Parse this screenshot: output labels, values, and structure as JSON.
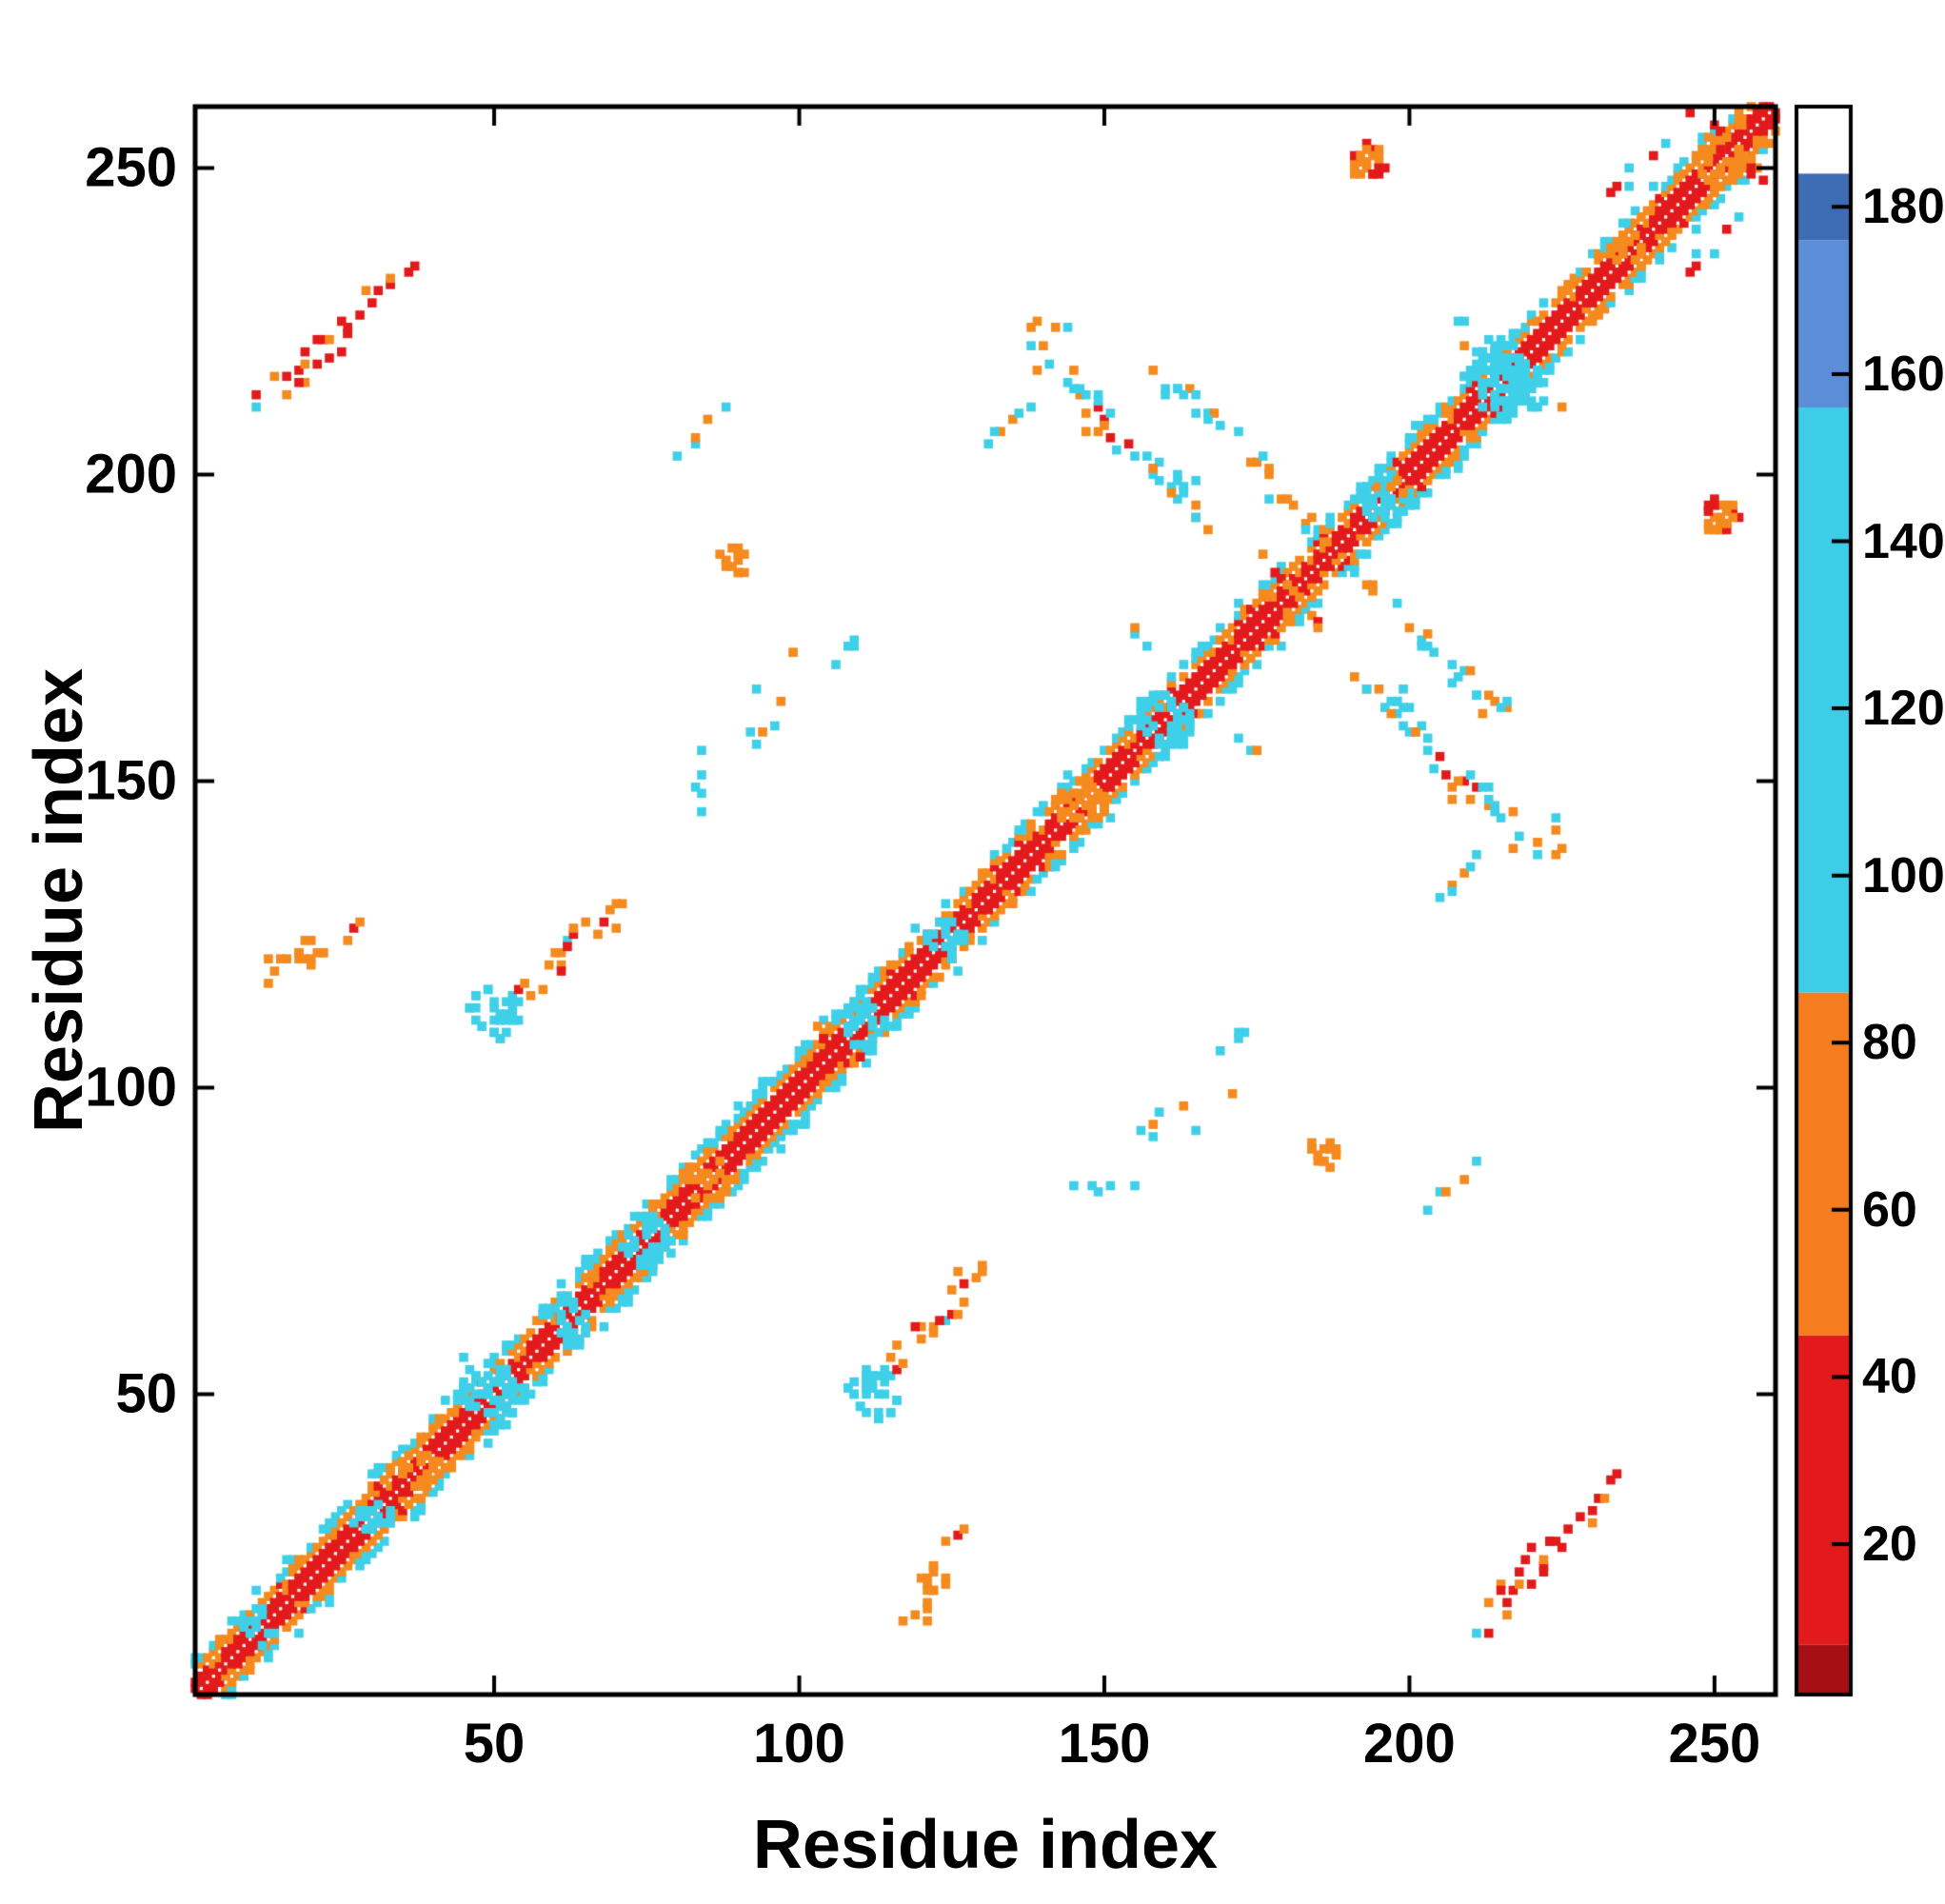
{
  "figure": {
    "background": "#ffffff",
    "frame_color": "#000000"
  },
  "chart_data": {
    "type": "heatmap",
    "title": "",
    "xlabel": "Residue index",
    "ylabel": "Residue index",
    "x_range": [
      1,
      260
    ],
    "y_range": [
      1,
      260
    ],
    "x_ticks": [
      50,
      100,
      150,
      200,
      250
    ],
    "y_ticks": [
      50,
      100,
      150,
      200,
      250
    ],
    "grid": false,
    "legend": "none",
    "palette": {
      "red": "#e31a1c",
      "darkred": "#a50f15",
      "orange": "#f58a1f",
      "cyan": "#3fd0e9",
      "blue": "#5b8ed6",
      "white": "#ffffff"
    },
    "colorbar": {
      "position": "right",
      "min": 2,
      "max": 192,
      "ticks": [
        20,
        40,
        60,
        80,
        100,
        120,
        140,
        160,
        180
      ],
      "segments": [
        {
          "from": 2,
          "to": 8,
          "color": "#a50f15"
        },
        {
          "from": 8,
          "to": 45,
          "color": "#e31a1c"
        },
        {
          "from": 45,
          "to": 86,
          "color": "#f57d20"
        },
        {
          "from": 86,
          "to": 156,
          "color": "#3ecde8"
        },
        {
          "from": 156,
          "to": 176,
          "color": "#5b8ed6"
        },
        {
          "from": 176,
          "to": 184,
          "color": "#3c6cb4"
        },
        {
          "from": 184,
          "to": 192,
          "color": "#ffffff"
        }
      ]
    },
    "diagonal_band": {
      "range": [
        1,
        260
      ],
      "center_color": "white",
      "layers": [
        {
          "offset": 1,
          "color": "red",
          "prob": 1.0
        },
        {
          "offset": 2,
          "color": "red",
          "prob": 0.9,
          "alt": "orange",
          "alt_prob": 0.1
        },
        {
          "offset": 3,
          "color": "orange",
          "prob": 0.12
        },
        {
          "offset": 4,
          "color": "orange",
          "prob": 0.8,
          "alt": "red",
          "alt_prob": 0.1
        },
        {
          "offset": 5,
          "color": "cyan",
          "prob": 0.4,
          "alt": "orange",
          "alt_prob": 0.2
        },
        {
          "offset": 6,
          "color": "cyan",
          "prob": 0.28
        },
        {
          "offset": 7,
          "color": "cyan",
          "prob": 0.08
        }
      ]
    },
    "diagonal_bulges": [
      {
        "pos": 12,
        "size": 3,
        "color": "cyan"
      },
      {
        "pos": 30,
        "size": 3,
        "color": "cyan"
      },
      {
        "pos": 38,
        "size": 3,
        "color": "orange"
      },
      {
        "pos": 50,
        "size": 5,
        "color": "cyan"
      },
      {
        "pos": 62,
        "size": 4,
        "color": "cyan"
      },
      {
        "pos": 75,
        "size": 4,
        "color": "cyan"
      },
      {
        "pos": 85,
        "size": 4,
        "color": "orange"
      },
      {
        "pos": 110,
        "size": 4,
        "color": "cyan"
      },
      {
        "pos": 124,
        "size": 3,
        "color": "cyan"
      },
      {
        "pos": 146,
        "size": 4,
        "color": "orange"
      },
      {
        "pos": 160,
        "size": 4,
        "color": "cyan"
      },
      {
        "pos": 196,
        "size": 4,
        "color": "cyan"
      },
      {
        "pos": 215,
        "size": 6,
        "color": "cyan"
      },
      {
        "pos": 236,
        "size": 3,
        "color": "orange"
      },
      {
        "pos": 251,
        "size": 4,
        "color": "orange"
      }
    ],
    "off_diagonal_features": [
      {
        "name": "contact-25-224",
        "center": [
          25,
          224
        ],
        "len": 26,
        "dir": "parallel",
        "width": 2,
        "density": 0.5,
        "colors": [
          "red",
          "orange",
          "cyan"
        ]
      },
      {
        "name": "contact-86-209",
        "center": [
          86,
          209
        ],
        "len": 10,
        "dir": "parallel",
        "width": 1,
        "density": 0.45,
        "colors": [
          "cyan",
          "orange"
        ]
      },
      {
        "name": "contact-134-208",
        "center": [
          134,
          208
        ],
        "len": 7,
        "dir": "parallel",
        "width": 1,
        "density": 0.45,
        "colors": [
          "orange",
          "cyan"
        ]
      },
      {
        "name": "contact-152-207",
        "center": [
          152,
          207
        ],
        "len": 24,
        "dir": "antiparallel",
        "width": 3,
        "density": 0.5,
        "colors": [
          "cyan",
          "orange",
          "red"
        ]
      },
      {
        "name": "contact-163-196",
        "center": [
          163,
          196
        ],
        "len": 10,
        "dir": "antiparallel",
        "width": 2,
        "density": 0.5,
        "colors": [
          "orange",
          "cyan"
        ]
      },
      {
        "name": "cross-188",
        "center": [
          188,
          188
        ],
        "len": 56,
        "dir": "antiparallel",
        "width": 2,
        "density": 0.5,
        "colors": [
          "cyan",
          "orange"
        ],
        "mirror": false
      },
      {
        "name": "cross-216",
        "center": [
          216,
          216
        ],
        "len": 16,
        "dir": "antiparallel",
        "width": 2,
        "density": 0.5,
        "colors": [
          "cyan",
          "orange"
        ],
        "mirror": false
      },
      {
        "name": "blob-214-218",
        "center": [
          214,
          218
        ],
        "len": 9,
        "dir": "blob",
        "width": 4,
        "density": 0.7,
        "colors": [
          "cyan"
        ]
      },
      {
        "name": "blob-196-198",
        "center": [
          196,
          198
        ],
        "len": 6,
        "dir": "blob",
        "width": 3,
        "density": 0.55,
        "colors": [
          "cyan",
          "orange"
        ],
        "mirror": false
      },
      {
        "name": "blob-193-251",
        "center": [
          193,
          251
        ],
        "len": 6,
        "dir": "blob",
        "width": 3,
        "density": 0.85,
        "colors": [
          "orange",
          "red"
        ]
      },
      {
        "name": "cross-253",
        "center": [
          253,
          253
        ],
        "len": 14,
        "dir": "antiparallel",
        "width": 2,
        "density": 0.6,
        "colors": [
          "orange",
          "red"
        ],
        "mirror": false
      },
      {
        "name": "cross-181",
        "center": [
          181,
          181
        ],
        "len": 12,
        "dir": "antiparallel",
        "width": 1,
        "density": 0.55,
        "colors": [
          "red",
          "orange"
        ],
        "mirror": false
      },
      {
        "name": "cross-107",
        "center": [
          107,
          107
        ],
        "len": 8,
        "dir": "antiparallel",
        "width": 1,
        "density": 0.6,
        "colors": [
          "red",
          "orange"
        ],
        "mirror": false
      },
      {
        "name": "cross-50",
        "center": [
          50,
          50
        ],
        "len": 12,
        "dir": "antiparallel",
        "width": 1,
        "density": 0.5,
        "colors": [
          "cyan"
        ],
        "mirror": false
      },
      {
        "name": "blob-50-112",
        "center": [
          50,
          112
        ],
        "len": 9,
        "dir": "blob",
        "width": 4,
        "density": 0.75,
        "colors": [
          "cyan"
        ]
      },
      {
        "name": "contact-64-124",
        "center": [
          64,
          124
        ],
        "len": 20,
        "dir": "parallel",
        "width": 2,
        "density": 0.5,
        "colors": [
          "orange",
          "red",
          "cyan"
        ]
      },
      {
        "name": "contact-83-149",
        "center": [
          83,
          149
        ],
        "len": 16,
        "dir": "vertical",
        "width": 1,
        "density": 0.3,
        "colors": [
          "cyan"
        ]
      },
      {
        "name": "contact-95-167",
        "center": [
          95,
          167
        ],
        "len": 10,
        "dir": "parallel",
        "width": 1,
        "density": 0.35,
        "colors": [
          "cyan",
          "orange"
        ]
      },
      {
        "name": "contact-108-172",
        "center": [
          108,
          172
        ],
        "len": 6,
        "dir": "parallel",
        "width": 1,
        "density": 0.5,
        "colors": [
          "orange",
          "cyan"
        ]
      },
      {
        "name": "contact-29-128",
        "center": [
          29,
          128
        ],
        "len": 8,
        "dir": "parallel",
        "width": 1,
        "density": 0.5,
        "colors": [
          "orange",
          "red"
        ]
      },
      {
        "name": "blob-20-122",
        "center": [
          20,
          122
        ],
        "len": 5,
        "dir": "blob",
        "width": 2,
        "density": 0.5,
        "colors": [
          "orange"
        ]
      },
      {
        "name": "contact-160-96",
        "center": [
          160,
          96
        ],
        "len": 22,
        "dir": "parallel",
        "width": 1,
        "density": 0.3,
        "colors": [
          "cyan",
          "orange"
        ]
      },
      {
        "name": "blob-186-89",
        "center": [
          186,
          89
        ],
        "len": 5,
        "dir": "blob",
        "width": 2,
        "density": 0.5,
        "colors": [
          "orange"
        ]
      },
      {
        "name": "contact-224-141",
        "center": [
          224,
          141
        ],
        "len": 9,
        "dir": "vertical",
        "width": 1,
        "density": 0.45,
        "colors": [
          "cyan",
          "orange"
        ]
      },
      {
        "name": "contact-238-250",
        "center": [
          238,
          250
        ],
        "len": 9,
        "dir": "parallel",
        "width": 1,
        "density": 0.4,
        "colors": [
          "cyan",
          "red"
        ]
      },
      {
        "name": "contact-120-14",
        "center": [
          120,
          14
        ],
        "len": 6,
        "dir": "parallel",
        "width": 1,
        "density": 0.5,
        "colors": [
          "orange"
        ]
      },
      {
        "name": "contact-171-157",
        "center": [
          171,
          157
        ],
        "len": 8,
        "dir": "antiparallel",
        "width": 1,
        "density": 0.4,
        "colors": [
          "cyan",
          "orange"
        ]
      }
    ]
  }
}
